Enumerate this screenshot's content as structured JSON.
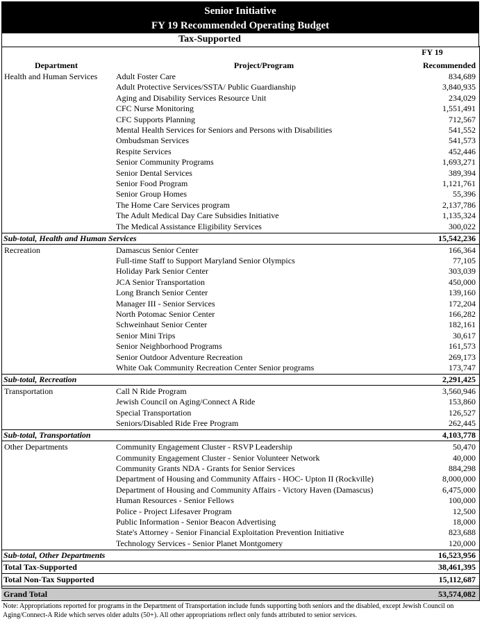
{
  "header": {
    "title": "Senior Initiative",
    "subtitle": "FY 19 Recommended Operating Budget",
    "section": "Tax-Supported"
  },
  "columns": {
    "department": "Department",
    "program": "Project/Program",
    "amount_line1": "FY 19",
    "amount_line2": "Recommended"
  },
  "groups": [
    {
      "department": "Health and Human Services",
      "rows": [
        [
          "Adult Foster Care",
          "834,689"
        ],
        [
          "Adult Protective Services/SSTA/ Public Guardianship",
          "3,840,935"
        ],
        [
          "Aging and Disability Services Resource Unit",
          "234,029"
        ],
        [
          "CFC Nurse Monitoring",
          "1,551,491"
        ],
        [
          "CFC Supports Planning",
          "712,567"
        ],
        [
          "Mental Health Services for Seniors and Persons with Disabilities",
          "541,552"
        ],
        [
          "Ombudsman Services",
          "541,573"
        ],
        [
          "Respite Services",
          "452,446"
        ],
        [
          "Senior Community Programs",
          "1,693,271"
        ],
        [
          "Senior Dental Services",
          "389,394"
        ],
        [
          "Senior Food Program",
          "1,121,761"
        ],
        [
          "Senior Group Homes",
          "55,396"
        ],
        [
          "The Home Care Services program",
          "2,137,786"
        ],
        [
          "The  Adult Medical Day Care Subsidies Initiative",
          "1,135,324"
        ],
        [
          "The Medical Assistance Eligibility Services",
          "300,022"
        ]
      ],
      "subtotal": {
        "label": "Sub-total, Health and Human Services",
        "amount": "15,542,236"
      }
    },
    {
      "department": "Recreation",
      "rows": [
        [
          "Damascus Senior Center",
          "166,364"
        ],
        [
          "Full-time Staff to Support Maryland Senior Olympics",
          "77,105"
        ],
        [
          "Holiday Park Senior Center",
          "303,039"
        ],
        [
          "JCA Senior Transportation",
          "450,000"
        ],
        [
          "Long Branch Senior Center",
          "139,160"
        ],
        [
          "Manager III - Senior Services",
          "172,204"
        ],
        [
          "North Potomac Senior Center",
          "166,282"
        ],
        [
          "Schweinhaut Senior Center",
          "182,161"
        ],
        [
          "Senior Mini Trips",
          "30,617"
        ],
        [
          "Senior Neighborhood Programs",
          "161,573"
        ],
        [
          "Senior Outdoor Adventure Recreation",
          "269,173"
        ],
        [
          "White Oak Community Recreation Center Senior programs",
          "173,747"
        ]
      ],
      "subtotal": {
        "label": "Sub-total, Recreation",
        "amount": "2,291,425"
      }
    },
    {
      "department": "Transportation",
      "rows": [
        [
          "Call N Ride Program",
          "3,560,946"
        ],
        [
          "Jewish Council on Aging/Connect A Ride",
          "153,860"
        ],
        [
          "Special Transportation",
          "126,527"
        ],
        [
          "Seniors/Disabled Ride Free Program",
          "262,445"
        ]
      ],
      "subtotal": {
        "label": "Sub-total, Transportation",
        "amount": "4,103,778"
      }
    },
    {
      "department": "Other Departments",
      "rows": [
        [
          "Community Engagement Cluster - RSVP Leadership",
          "50,470"
        ],
        [
          "Community Engagement Cluster - Senior Volunteer Network",
          "40,000"
        ],
        [
          "Community Grants NDA - Grants for Senior Services",
          "884,298"
        ],
        [
          "Department of Housing and Community Affairs - HOC- Upton II (Rockville)",
          "8,000,000"
        ],
        [
          "Department of Housing and Community Affairs - Victory Haven (Damascus)",
          "6,475,000"
        ],
        [
          "Human Resources - Senior Fellows",
          "100,000"
        ],
        [
          "Police - Project Lifesaver Program",
          "12,500"
        ],
        [
          "Public Information - Senior Beacon Advertising",
          "18,000"
        ],
        [
          "State's Attorney - Senior Financial Exploitation Prevention Initiative",
          "823,688"
        ],
        [
          "Technology Services - Senior Planet Montgomery",
          "120,000"
        ]
      ],
      "subtotal": {
        "label": "Sub-total, Other Departments",
        "amount": "16,523,956"
      }
    }
  ],
  "totals": [
    {
      "label": "Total Tax-Supported",
      "amount": "38,461,395"
    },
    {
      "label": "Total Non-Tax Supported",
      "amount": "15,112,687"
    },
    {
      "label": "Grand Total",
      "amount": "53,574,082"
    }
  ],
  "note": "Note: Appropriations reported for programs in the Department of Transportation include funds supporting both seniors and the disabled, except Jewish Council on Aging/Connect-A Ride which serves older adults (50+).  All other appropriations reflect only funds attributed to senior services."
}
